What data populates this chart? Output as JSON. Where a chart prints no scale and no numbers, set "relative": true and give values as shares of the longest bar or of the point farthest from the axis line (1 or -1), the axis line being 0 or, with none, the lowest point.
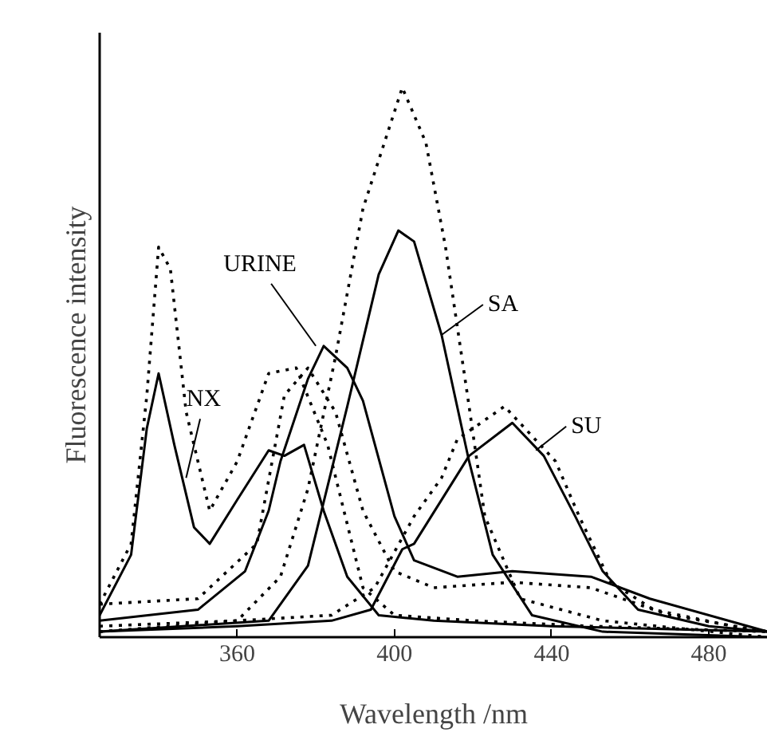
{
  "chart_data": {
    "type": "line",
    "xlabel": "Wavelength /nm",
    "ylabel": "Fluorescence intensity",
    "relative": true,
    "xlim": [
      325,
      495
    ],
    "xticks": [
      360,
      400,
      440,
      480
    ],
    "grid": false,
    "series": [
      {
        "color": "#000000",
        "line_style": "solid",
        "x": [
          325,
          333,
          337,
          340,
          344,
          349,
          353,
          360,
          368,
          372,
          377,
          382,
          388,
          396,
          410,
          440,
          495
        ],
        "values": [
          0.04,
          0.15,
          0.38,
          0.48,
          0.35,
          0.2,
          0.17,
          0.25,
          0.34,
          0.33,
          0.35,
          0.23,
          0.11,
          0.04,
          0.03,
          0.02,
          0.01
        ]
      },
      {
        "color": "#000000",
        "line_style": "dotted",
        "x": [
          325,
          333,
          337,
          340,
          343,
          347,
          353,
          360,
          368,
          375,
          383,
          392,
          400,
          420,
          450,
          495
        ],
        "values": [
          0.06,
          0.17,
          0.44,
          0.71,
          0.67,
          0.41,
          0.23,
          0.32,
          0.48,
          0.49,
          0.35,
          0.09,
          0.04,
          0.03,
          0.02,
          0.01
        ]
      },
      {
        "color": "#000000",
        "line_style": "solid",
        "x": [
          325,
          350,
          362,
          368,
          371,
          378,
          382,
          388,
          392,
          400,
          405,
          416,
          430,
          450,
          465,
          490,
          495
        ],
        "values": [
          0.03,
          0.05,
          0.12,
          0.23,
          0.32,
          0.47,
          0.53,
          0.49,
          0.43,
          0.22,
          0.14,
          0.11,
          0.12,
          0.11,
          0.07,
          0.02,
          0.01
        ]
      },
      {
        "color": "#000000",
        "line_style": "dotted",
        "x": [
          325,
          350,
          365,
          372,
          378,
          385,
          392,
          400,
          410,
          430,
          450,
          470,
          495
        ],
        "values": [
          0.06,
          0.07,
          0.17,
          0.44,
          0.49,
          0.41,
          0.23,
          0.12,
          0.09,
          0.1,
          0.09,
          0.04,
          0.01
        ]
      },
      {
        "color": "#000000",
        "line_style": "solid",
        "x": [
          325,
          368,
          378,
          388,
          396,
          401,
          405,
          412,
          419,
          425,
          435,
          453,
          495
        ],
        "values": [
          0.01,
          0.03,
          0.13,
          0.42,
          0.66,
          0.74,
          0.72,
          0.55,
          0.32,
          0.15,
          0.04,
          0.01,
          0
        ]
      },
      {
        "color": "#000000",
        "line_style": "dotted",
        "x": [
          325,
          360,
          371,
          378,
          385,
          392,
          402,
          408,
          413,
          419,
          423,
          432,
          453,
          495
        ],
        "values": [
          0.01,
          0.03,
          0.11,
          0.27,
          0.51,
          0.78,
          1,
          0.9,
          0.71,
          0.42,
          0.22,
          0.07,
          0.03,
          0
        ]
      },
      {
        "color": "#000000",
        "line_style": "solid",
        "x": [
          325,
          360,
          384,
          394,
          402,
          405,
          419,
          430,
          438,
          446,
          453,
          462,
          480,
          495
        ],
        "values": [
          0.01,
          0.02,
          0.03,
          0.05,
          0.16,
          0.17,
          0.33,
          0.39,
          0.33,
          0.22,
          0.12,
          0.05,
          0.02,
          0.01
        ]
      },
      {
        "color": "#000000",
        "line_style": "dotted",
        "x": [
          325,
          360,
          384,
          395,
          405,
          412,
          416,
          428,
          441,
          447,
          455,
          466,
          486,
          495
        ],
        "values": [
          0.02,
          0.03,
          0.04,
          0.09,
          0.22,
          0.29,
          0.36,
          0.42,
          0.32,
          0.22,
          0.1,
          0.05,
          0.02,
          0.01
        ]
      }
    ],
    "annotations": [
      {
        "text": "NX",
        "x": 347,
        "y": 0.29
      },
      {
        "text": "URINE",
        "x": 380,
        "y": 0.53
      },
      {
        "text": "SA",
        "x": 412,
        "y": 0.55
      },
      {
        "text": "SU",
        "x": 436,
        "y": 0.34
      }
    ]
  }
}
